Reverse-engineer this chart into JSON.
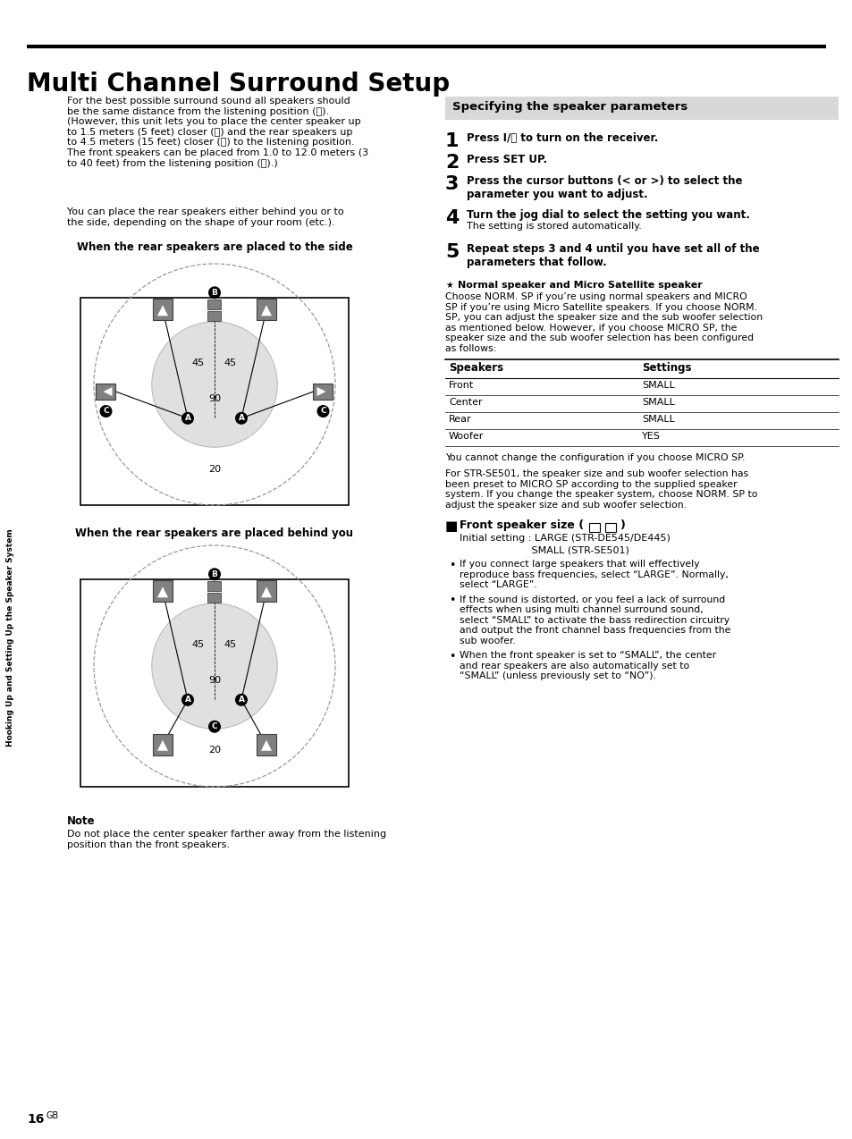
{
  "title": "Multi Channel Surround Setup",
  "page_bg": "#ffffff",
  "header_line_color": "#000000",
  "sidebar_text": "Hooking Up and Setting Up the Speaker System",
  "sidebar_bg": "#d0d0d0",
  "intro_text": "For the best possible surround sound all speakers should\nbe the same distance from the listening position (Ⓐ).\n(However, this unit lets you to place the center speaker up\nto 1.5 meters (5 feet) closer (Ⓑ) and the rear speakers up\nto 4.5 meters (15 feet) closer (Ⓒ) to the listening position.\nThe front speakers can be placed from 1.0 to 12.0 meters (3\nto 40 feet) from the listening position (Ⓐ).)",
  "intro_text2": "You can place the rear speakers either behind you or to\nthe side, depending on the shape of your room (etc.).",
  "diagram1_title": "When the rear speakers are placed to the side",
  "diagram2_title": "When the rear speakers are placed behind you",
  "note_title": "Note",
  "note_text": "Do not place the center speaker farther away from the listening\nposition than the front speakers.",
  "right_box_title": "Specifying the speaker parameters",
  "right_box_bg": "#d8d8d8",
  "steps": [
    {
      "num": "1",
      "bold": "Press I/⏻ to turn on the receiver."
    },
    {
      "num": "2",
      "bold": "Press SET UP."
    },
    {
      "num": "3",
      "bold": "Press the cursor buttons (< or >) to select the\nparameter you want to adjust."
    },
    {
      "num": "4",
      "bold": "Turn the jog dial to select the setting you want.",
      "normal": "The setting is stored automatically."
    },
    {
      "num": "5",
      "bold": "Repeat steps 3 and 4 until you have set all of the\nparameters that follow."
    }
  ],
  "tip_title": "Normal speaker and Micro Satellite speaker",
  "tip_text": "Choose NORM. SP if you’re using normal speakers and MICRO\nSP if you’re using Micro Satellite speakers. If you choose NORM.\nSP, you can adjust the speaker size and the sub woofer selection\nas mentioned below. However, if you choose MICRO SP, the\nspeaker size and the sub woofer selection has been configured\nas follows:",
  "table_headers": [
    "Speakers",
    "Settings"
  ],
  "table_rows": [
    [
      "Front",
      "SMALL"
    ],
    [
      "Center",
      "SMALL"
    ],
    [
      "Rear",
      "SMALL"
    ],
    [
      "Woofer",
      "YES"
    ]
  ],
  "cannot_change_text": "You cannot change the configuration if you choose MICRO SP.",
  "str_text": "For STR-SE501, the speaker size and sub woofer selection has\nbeen preset to MICRO SP according to the supplied speaker\nsystem. If you change the speaker system, choose NORM. SP to\nadjust the speaker size and sub woofer selection.",
  "front_speaker_title": "Front speaker size",
  "front_speaker_init_line1": "Initial setting : LARGE (STR-DE545/DE445)",
  "front_speaker_init_line2": "                       SMALL (STR-SE501)",
  "front_bullets": [
    "If you connect large speakers that will effectively\nreproduce bass frequencies, select “LARGE”. Normally,\nselect “LARGE”.",
    "If the sound is distorted, or you feel a lack of surround\neffects when using multi channel surround sound,\nselect “SMALL” to activate the bass redirection circuitry\nand output the front channel bass frequencies from the\nsub woofer.",
    "When the front speaker is set to “SMALL”, the center\nand rear speakers are also automatically set to\n“SMALL” (unless previously set to “NO”)."
  ],
  "page_num": "16",
  "page_num_super": "GB"
}
